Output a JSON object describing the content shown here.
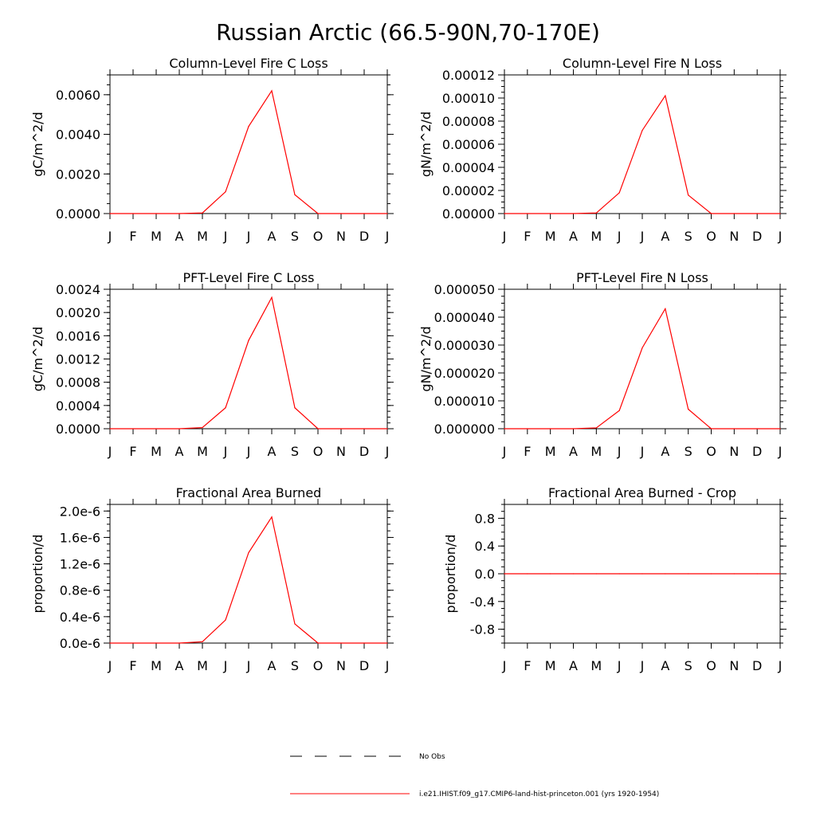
{
  "figure": {
    "title": "Russian Arctic (66.5-90N,70-170E)",
    "months": [
      "J",
      "F",
      "M",
      "A",
      "M",
      "J",
      "J",
      "A",
      "S",
      "O",
      "N",
      "D",
      "J"
    ],
    "line_color": "#ff0000",
    "legend": [
      {
        "label": "No Obs",
        "style": "dashed",
        "color": "#000000"
      },
      {
        "label": "i.e21.IHIST.f09_g17.CMIP6-land-hist-princeton.001 (yrs 1920-1954)",
        "style": "solid",
        "color": "#ff0000"
      }
    ]
  },
  "chart_data": [
    {
      "type": "line",
      "title": "Column-Level Fire C Loss",
      "ylabel": "gC/m^2/d",
      "ylim": [
        0,
        0.007
      ],
      "yticks": [
        0,
        0.002,
        0.004,
        0.006
      ],
      "yticklabels": [
        "0.0000",
        "0.0020",
        "0.0040",
        "0.0060"
      ],
      "yminor": 0.0005,
      "x": [
        1,
        2,
        3,
        4,
        5,
        6,
        7,
        8,
        9,
        10,
        11,
        12,
        13
      ],
      "values": [
        0,
        0,
        0,
        0,
        3e-05,
        0.0011,
        0.0044,
        0.0062,
        0.00095,
        0,
        0,
        0,
        0
      ]
    },
    {
      "type": "line",
      "title": "Column-Level Fire N Loss",
      "ylabel": "gN/m^2/d",
      "ylim": [
        0,
        0.00012
      ],
      "yticks": [
        0,
        2e-05,
        4e-05,
        6e-05,
        8e-05,
        0.0001,
        0.00012
      ],
      "yticklabels": [
        "0.00000",
        "0.00002",
        "0.00004",
        "0.00006",
        "0.00008",
        "0.00010",
        "0.00012"
      ],
      "yminor": 5e-06,
      "x": [
        1,
        2,
        3,
        4,
        5,
        6,
        7,
        8,
        9,
        10,
        11,
        12,
        13
      ],
      "values": [
        0,
        0,
        0,
        0,
        5e-07,
        1.8e-05,
        7.2e-05,
        0.000102,
        1.6e-05,
        0,
        0,
        0,
        0
      ]
    },
    {
      "type": "line",
      "title": "PFT-Level Fire C Loss",
      "ylabel": "gC/m^2/d",
      "ylim": [
        0,
        0.0024
      ],
      "yticks": [
        0,
        0.0004,
        0.0008,
        0.0012,
        0.0016,
        0.002,
        0.0024
      ],
      "yticklabels": [
        "0.0000",
        "0.0004",
        "0.0008",
        "0.0012",
        "0.0016",
        "0.0020",
        "0.0024"
      ],
      "yminor": 0.0001,
      "x": [
        1,
        2,
        3,
        4,
        5,
        6,
        7,
        8,
        9,
        10,
        11,
        12,
        13
      ],
      "values": [
        0,
        0,
        0,
        0,
        2e-05,
        0.00036,
        0.00152,
        0.00226,
        0.00036,
        0,
        0,
        0,
        0
      ]
    },
    {
      "type": "line",
      "title": "PFT-Level Fire N Loss",
      "ylabel": "gN/m^2/d",
      "ylim": [
        0,
        5e-05
      ],
      "yticks": [
        0,
        1e-05,
        2e-05,
        3e-05,
        4e-05,
        5e-05
      ],
      "yticklabels": [
        "0.000000",
        "0.000010",
        "0.000020",
        "0.000030",
        "0.000040",
        "0.000050"
      ],
      "yminor": 2.5e-06,
      "x": [
        1,
        2,
        3,
        4,
        5,
        6,
        7,
        8,
        9,
        10,
        11,
        12,
        13
      ],
      "values": [
        0,
        0,
        0,
        0,
        3e-07,
        6.5e-06,
        2.9e-05,
        4.3e-05,
        7e-06,
        0,
        0,
        0,
        0
      ]
    },
    {
      "type": "line",
      "title": "Fractional Area Burned",
      "ylabel": "proportion/d",
      "ylim": [
        0,
        2.1e-06
      ],
      "yticks": [
        0,
        4e-07,
        8e-07,
        1.2e-06,
        1.6e-06,
        2e-06
      ],
      "yticklabels": [
        "0.0e-6",
        "0.4e-6",
        "0.8e-6",
        "1.2e-6",
        "1.6e-6",
        "2.0e-6"
      ],
      "yminor": 1e-07,
      "x": [
        1,
        2,
        3,
        4,
        5,
        6,
        7,
        8,
        9,
        10,
        11,
        12,
        13
      ],
      "values": [
        0,
        0,
        0,
        0,
        2e-08,
        3.5e-07,
        1.37e-06,
        1.91e-06,
        2.9e-07,
        0,
        0,
        0,
        0
      ]
    },
    {
      "type": "line",
      "title": "Fractional Area Burned - Crop",
      "ylabel": "proportion/d",
      "ylim": [
        -1,
        1
      ],
      "yticks": [
        -0.8,
        -0.4,
        0,
        0.4,
        0.8
      ],
      "yticklabels": [
        "-0.8",
        "-0.4",
        "0.0",
        "0.4",
        "0.8"
      ],
      "yminor": 0.1,
      "x": [
        1,
        2,
        3,
        4,
        5,
        6,
        7,
        8,
        9,
        10,
        11,
        12,
        13
      ],
      "values": [
        0,
        0,
        0,
        0,
        0,
        0,
        0,
        0,
        0,
        0,
        0,
        0,
        0
      ]
    }
  ]
}
